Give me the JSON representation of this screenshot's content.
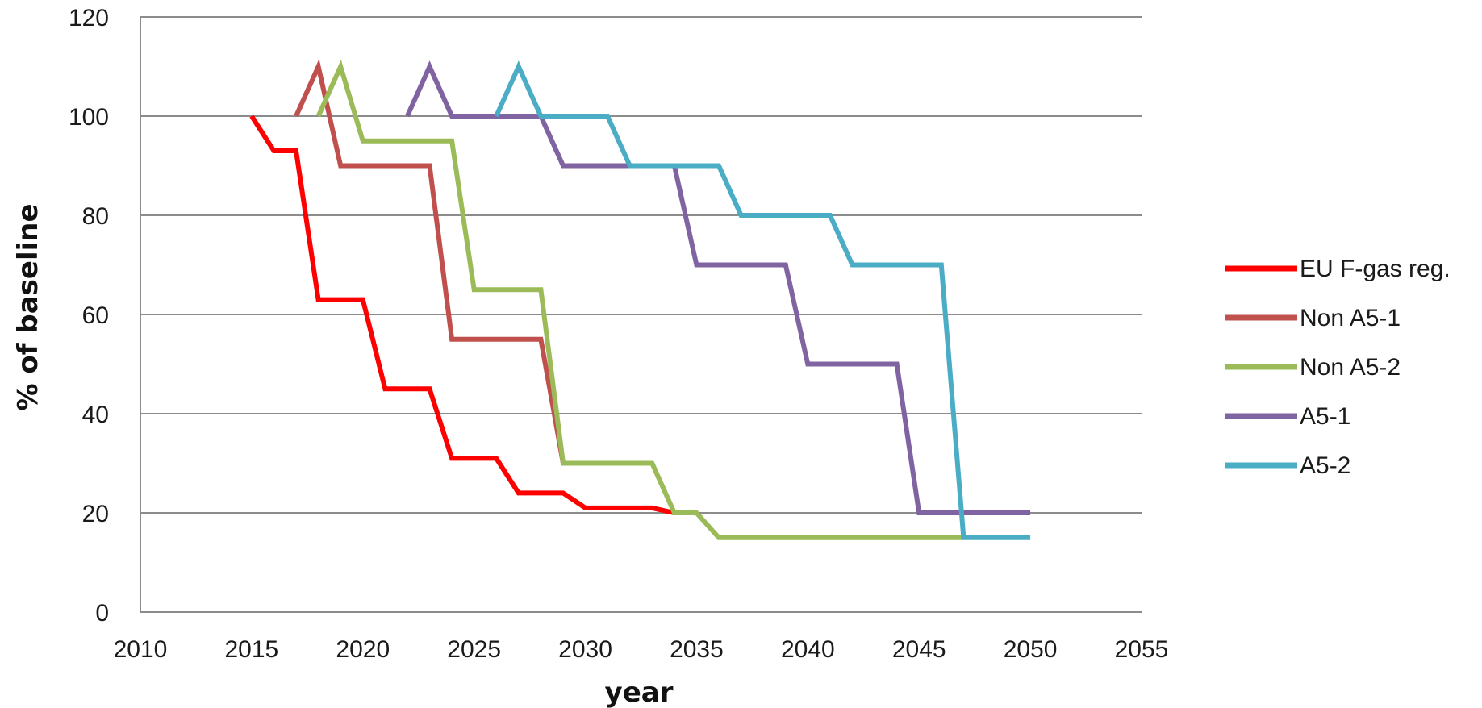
{
  "chart_data": {
    "type": "line",
    "title": "",
    "xlabel": "year",
    "ylabel": "% of baseline",
    "xlim": [
      2010,
      2055
    ],
    "ylim": [
      0,
      120
    ],
    "x_ticks": [
      2010,
      2015,
      2020,
      2025,
      2030,
      2035,
      2040,
      2045,
      2050,
      2055
    ],
    "y_ticks": [
      0,
      20,
      40,
      60,
      80,
      100,
      120
    ],
    "grid": "horizontal",
    "legend": "right",
    "series": [
      {
        "name": "EU F-gas reg.",
        "color": "#ff0000",
        "points": [
          [
            2015,
            100
          ],
          [
            2016,
            93
          ],
          [
            2017,
            93
          ],
          [
            2018,
            63
          ],
          [
            2019,
            63
          ],
          [
            2020,
            63
          ],
          [
            2021,
            45
          ],
          [
            2022,
            45
          ],
          [
            2023,
            45
          ],
          [
            2024,
            31
          ],
          [
            2025,
            31
          ],
          [
            2026,
            31
          ],
          [
            2027,
            24
          ],
          [
            2028,
            24
          ],
          [
            2029,
            24
          ],
          [
            2030,
            21
          ],
          [
            2031,
            21
          ],
          [
            2032,
            21
          ],
          [
            2033,
            21
          ],
          [
            2034,
            20
          ]
        ]
      },
      {
        "name": "Non A5-1",
        "color": "#c0504d",
        "points": [
          [
            2017,
            100
          ],
          [
            2018,
            110
          ],
          [
            2019,
            90
          ],
          [
            2020,
            90
          ],
          [
            2021,
            90
          ],
          [
            2022,
            90
          ],
          [
            2023,
            90
          ],
          [
            2024,
            55
          ],
          [
            2025,
            55
          ],
          [
            2026,
            55
          ],
          [
            2027,
            55
          ],
          [
            2028,
            55
          ],
          [
            2029,
            30
          ]
        ]
      },
      {
        "name": "Non A5-2",
        "color": "#9bbb59",
        "points": [
          [
            2018,
            100
          ],
          [
            2019,
            110
          ],
          [
            2020,
            95
          ],
          [
            2021,
            95
          ],
          [
            2022,
            95
          ],
          [
            2023,
            95
          ],
          [
            2024,
            95
          ],
          [
            2025,
            65
          ],
          [
            2026,
            65
          ],
          [
            2027,
            65
          ],
          [
            2028,
            65
          ],
          [
            2029,
            30
          ],
          [
            2030,
            30
          ],
          [
            2031,
            30
          ],
          [
            2032,
            30
          ],
          [
            2033,
            30
          ],
          [
            2034,
            20
          ],
          [
            2035,
            20
          ],
          [
            2036,
            15
          ],
          [
            2037,
            15
          ],
          [
            2038,
            15
          ],
          [
            2039,
            15
          ],
          [
            2040,
            15
          ],
          [
            2041,
            15
          ],
          [
            2042,
            15
          ],
          [
            2043,
            15
          ],
          [
            2044,
            15
          ],
          [
            2045,
            15
          ],
          [
            2046,
            15
          ],
          [
            2047,
            15
          ]
        ]
      },
      {
        "name": "A5-1",
        "color": "#8064a2",
        "points": [
          [
            2022,
            100
          ],
          [
            2023,
            110
          ],
          [
            2024,
            100
          ],
          [
            2025,
            100
          ],
          [
            2026,
            100
          ],
          [
            2027,
            100
          ],
          [
            2028,
            100
          ],
          [
            2029,
            90
          ],
          [
            2030,
            90
          ],
          [
            2031,
            90
          ],
          [
            2032,
            90
          ],
          [
            2033,
            90
          ],
          [
            2034,
            90
          ],
          [
            2035,
            70
          ],
          [
            2036,
            70
          ],
          [
            2037,
            70
          ],
          [
            2038,
            70
          ],
          [
            2039,
            70
          ],
          [
            2040,
            50
          ],
          [
            2041,
            50
          ],
          [
            2042,
            50
          ],
          [
            2043,
            50
          ],
          [
            2044,
            50
          ],
          [
            2045,
            20
          ],
          [
            2046,
            20
          ],
          [
            2047,
            20
          ],
          [
            2048,
            20
          ],
          [
            2049,
            20
          ],
          [
            2050,
            20
          ]
        ]
      },
      {
        "name": "A5-2",
        "color": "#4bacc6",
        "points": [
          [
            2026,
            100
          ],
          [
            2027,
            110
          ],
          [
            2028,
            100
          ],
          [
            2029,
            100
          ],
          [
            2030,
            100
          ],
          [
            2031,
            100
          ],
          [
            2032,
            90
          ],
          [
            2033,
            90
          ],
          [
            2034,
            90
          ],
          [
            2035,
            90
          ],
          [
            2036,
            90
          ],
          [
            2037,
            80
          ],
          [
            2038,
            80
          ],
          [
            2039,
            80
          ],
          [
            2040,
            80
          ],
          [
            2041,
            80
          ],
          [
            2042,
            70
          ],
          [
            2043,
            70
          ],
          [
            2044,
            70
          ],
          [
            2045,
            70
          ],
          [
            2046,
            70
          ],
          [
            2047,
            15
          ],
          [
            2048,
            15
          ],
          [
            2049,
            15
          ],
          [
            2050,
            15
          ]
        ]
      }
    ]
  }
}
